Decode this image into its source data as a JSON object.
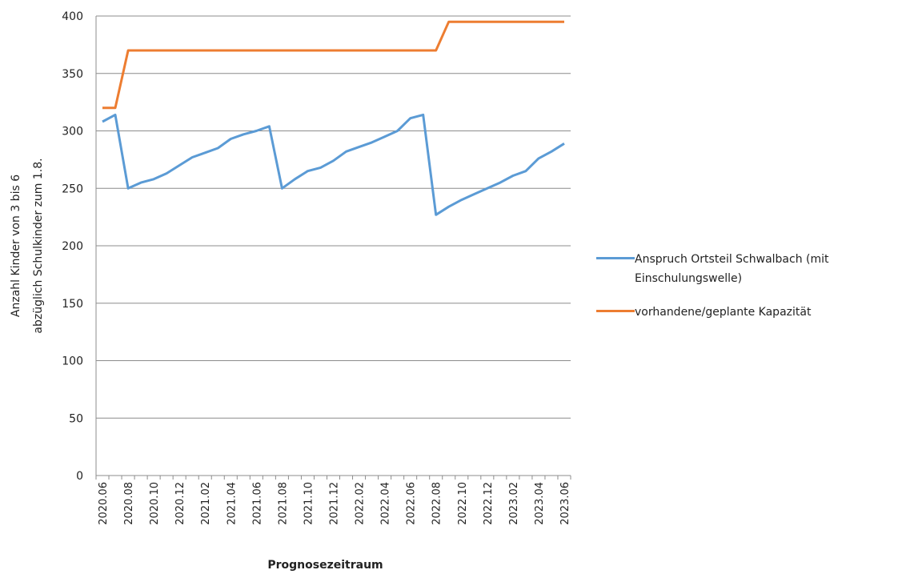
{
  "chart_data": {
    "type": "line",
    "ylabel": [
      "Anzahl Kinder von 3 bis 6",
      "abzüglich Schulkinder zum 1.8."
    ],
    "xlabel": "Prognosezeitraum",
    "categories": [
      "2020.06",
      null,
      "2020.08",
      null,
      "2020.10",
      null,
      "2020.12",
      null,
      "2021.02",
      null,
      "2021.04",
      null,
      "2021.06",
      null,
      "2021.08",
      null,
      "2021.10",
      null,
      "2021.12",
      null,
      "2022.02",
      null,
      "2022.04",
      null,
      "2022.06",
      null,
      "2022.08",
      null,
      "2022.10",
      null,
      "2022.12",
      null,
      "2023.02",
      null,
      "2023.04",
      null,
      "2023.06"
    ],
    "series": [
      {
        "name": "Anspruch Ortsteil Schwalbach (mit Einschulungswelle)",
        "color": "#5b9bd5",
        "values": [
          308,
          314,
          250,
          255,
          258,
          263,
          270,
          277,
          281,
          285,
          293,
          297,
          300,
          304,
          250,
          258,
          265,
          268,
          274,
          282,
          286,
          290,
          295,
          300,
          311,
          314,
          227,
          234,
          240,
          245,
          250,
          255,
          261,
          265,
          276,
          282,
          289
        ]
      },
      {
        "name": "vorhandene/geplante Kapazität",
        "color": "#ed7d31",
        "values": [
          320,
          320,
          370,
          370,
          370,
          370,
          370,
          370,
          370,
          370,
          370,
          370,
          370,
          370,
          370,
          370,
          370,
          370,
          370,
          370,
          370,
          370,
          370,
          370,
          370,
          370,
          370,
          395,
          395,
          395,
          395,
          395,
          395,
          395,
          395,
          395,
          395
        ]
      }
    ],
    "ylim": [
      0,
      400
    ],
    "yticks": [
      0,
      50,
      100,
      150,
      200,
      250,
      300,
      350,
      400
    ],
    "grid": true,
    "legend": "right"
  }
}
